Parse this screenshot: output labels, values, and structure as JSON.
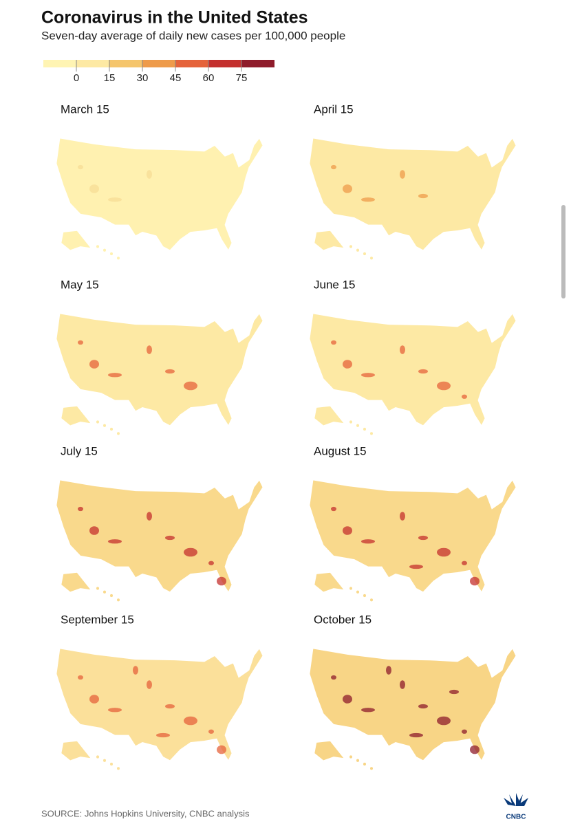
{
  "title": "Coronavirus in the United States",
  "subtitle": "Seven-day average of daily new cases per 100,000 people",
  "legend": {
    "ticks": [
      0,
      15,
      30,
      45,
      60,
      75
    ],
    "colors": [
      "#fff4b3",
      "#fde9a4",
      "#f5c56c",
      "#ee9b4b",
      "#e5633b",
      "#c4302e",
      "#8f1c2b"
    ]
  },
  "panels": [
    {
      "label": "March 15",
      "fill": "#fff1b0",
      "hot": "#f7dc95"
    },
    {
      "label": "April 15",
      "fill": "#fde9a4",
      "hot": "#ee9b4b"
    },
    {
      "label": "May 15",
      "fill": "#fde9a4",
      "hot": "#e5633b"
    },
    {
      "label": "June 15",
      "fill": "#fde9a4",
      "hot": "#e5633b"
    },
    {
      "label": "July 15",
      "fill": "#f9d98c",
      "hot": "#c4302e"
    },
    {
      "label": "August 15",
      "fill": "#f9d98c",
      "hot": "#c4302e"
    },
    {
      "label": "September 15",
      "fill": "#fbe09a",
      "hot": "#e5633b"
    },
    {
      "label": "October 15",
      "fill": "#f8d586",
      "hot": "#8f1c2b"
    }
  ],
  "source": "SOURCE: Johns Hopkins University, CNBC analysis",
  "logo": "CNBC"
}
